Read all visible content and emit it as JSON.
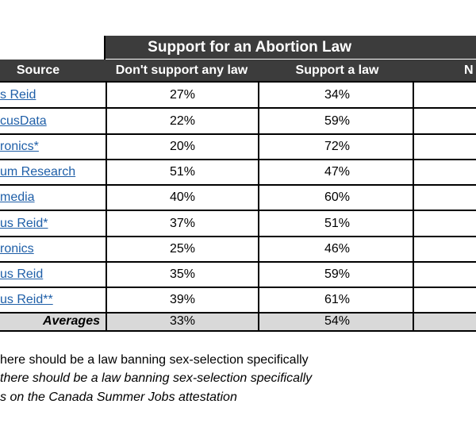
{
  "header": {
    "title": "Support for an Abortion Law"
  },
  "table": {
    "columns": [
      "Source",
      "Don't support any law",
      "Support a law",
      "N"
    ],
    "rows": [
      [
        "s Reid",
        "27%",
        "34%"
      ],
      [
        "cusData",
        "22%",
        "59%"
      ],
      [
        "ronics*",
        "20%",
        "72%"
      ],
      [
        "um Research",
        "51%",
        "47%"
      ],
      [
        "media",
        "40%",
        "60%"
      ],
      [
        "us Reid*",
        "37%",
        "51%"
      ],
      [
        "ronics",
        "25%",
        "46%"
      ],
      [
        "us Reid",
        "35%",
        "59%"
      ],
      [
        "us Reid**",
        "39%",
        "61%"
      ]
    ],
    "averages": [
      "Averages",
      "33%",
      "54%"
    ]
  },
  "footnotes": [
    "here should be a law banning sex-selection specifically",
    "there should be a law banning sex-selection specifically",
    "s on the Canada Summer Jobs attestation"
  ]
}
